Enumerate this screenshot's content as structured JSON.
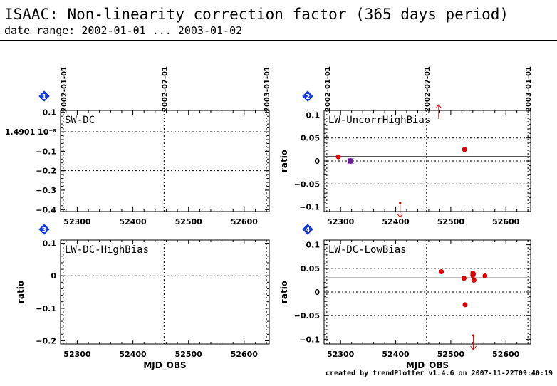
{
  "header": {
    "title": "ISAAC: Non-linearity correction factor (365 days period)",
    "subtitle": "date range: 2002-01-01 ... 2003-01-02"
  },
  "footer": {
    "credit": "created by trendPlotter v1.4.6 on 2007-11-22T09:40:19"
  },
  "colors": {
    "point": "#dd0000",
    "special_point": "#6a1a9a",
    "badge": "#1a3fe0",
    "axis": "#000000"
  },
  "chart_data": [
    {
      "type": "scatter",
      "panel": "1",
      "label": "SW-DC",
      "ylabel": "",
      "xlabel": "",
      "xlim": [
        52270,
        52645
      ],
      "ylim": [
        -0.41,
        0.11
      ],
      "yticks": [
        0.1,
        0,
        -0.1,
        -0.2,
        -0.3,
        -0.4
      ],
      "ytick_labels": [
        "0.1",
        "1.4901 10⁻⁸",
        "−0.1",
        "−0.2",
        "−0.3",
        "−0.4"
      ],
      "xticks": [
        52300,
        52400,
        52500,
        52600
      ],
      "xtick_labels": [
        "52300",
        "52400",
        "52500",
        "52600"
      ],
      "ref_line": null,
      "points": [],
      "special_points": [],
      "out_high": [],
      "out_low": []
    },
    {
      "type": "scatter",
      "panel": "2",
      "label": "LW-UncorrHighBias",
      "ylabel": "ratio",
      "xlabel": "",
      "xlim": [
        52270,
        52645
      ],
      "ylim": [
        -0.11,
        0.11
      ],
      "yticks": [
        0.1,
        0.05,
        0,
        -0.05,
        -0.1
      ],
      "ytick_labels": [
        "0.1",
        "0.05",
        "0",
        "−0.05",
        "−0.1"
      ],
      "xticks": [
        52300,
        52400,
        52500,
        52600
      ],
      "xtick_labels": [
        "52300",
        "52400",
        "52500",
        "52600"
      ],
      "ref_line": 0.01,
      "points": [
        [
          52296,
          0.009
        ],
        [
          52525,
          0.025
        ]
      ],
      "special_points": [
        [
          52318,
          0.0
        ]
      ],
      "out_high": [
        52478
      ],
      "out_low": [
        52408
      ]
    },
    {
      "type": "scatter",
      "panel": "3",
      "label": "LW-DC-HighBias",
      "ylabel": "ratio",
      "xlabel": "MJD_OBS",
      "xlim": [
        52270,
        52645
      ],
      "ylim": [
        -0.21,
        0.11
      ],
      "yticks": [
        0.1,
        0,
        -0.1,
        -0.2
      ],
      "ytick_labels": [
        "0.1",
        "0",
        "−0.1",
        "−0.2"
      ],
      "xticks": [
        52300,
        52400,
        52500,
        52600
      ],
      "xtick_labels": [
        "52300",
        "52400",
        "52500",
        "52600"
      ],
      "ref_line": null,
      "points": [],
      "special_points": [],
      "out_high": [],
      "out_low": []
    },
    {
      "type": "scatter",
      "panel": "4",
      "label": "LW-DC-LowBias",
      "ylabel": "ratio",
      "xlabel": "MJD_OBS",
      "xlim": [
        52270,
        52645
      ],
      "ylim": [
        -0.11,
        0.11
      ],
      "yticks": [
        0.1,
        0.05,
        0,
        -0.05,
        -0.1
      ],
      "ytick_labels": [
        "0.1",
        "0.05",
        "0",
        "−0.05",
        "−0.1"
      ],
      "xticks": [
        52300,
        52400,
        52500,
        52600
      ],
      "xtick_labels": [
        "52300",
        "52400",
        "52500",
        "52600"
      ],
      "ref_line": 0.03,
      "points": [
        [
          52483,
          0.043
        ],
        [
          52524,
          0.029
        ],
        [
          52540,
          0.035
        ],
        [
          52540,
          0.04
        ],
        [
          52541,
          0.038
        ],
        [
          52542,
          0.025
        ],
        [
          52562,
          0.034
        ],
        [
          52526,
          -0.027
        ]
      ],
      "special_points": [],
      "out_high": [],
      "out_low": [
        52541
      ]
    }
  ],
  "date_axis": {
    "ticks": [
      {
        "mjd": 52275,
        "label": "2002-01-01"
      },
      {
        "mjd": 52456,
        "label": "2002-07-01"
      },
      {
        "mjd": 52640,
        "label": "2003-01-01"
      }
    ]
  }
}
